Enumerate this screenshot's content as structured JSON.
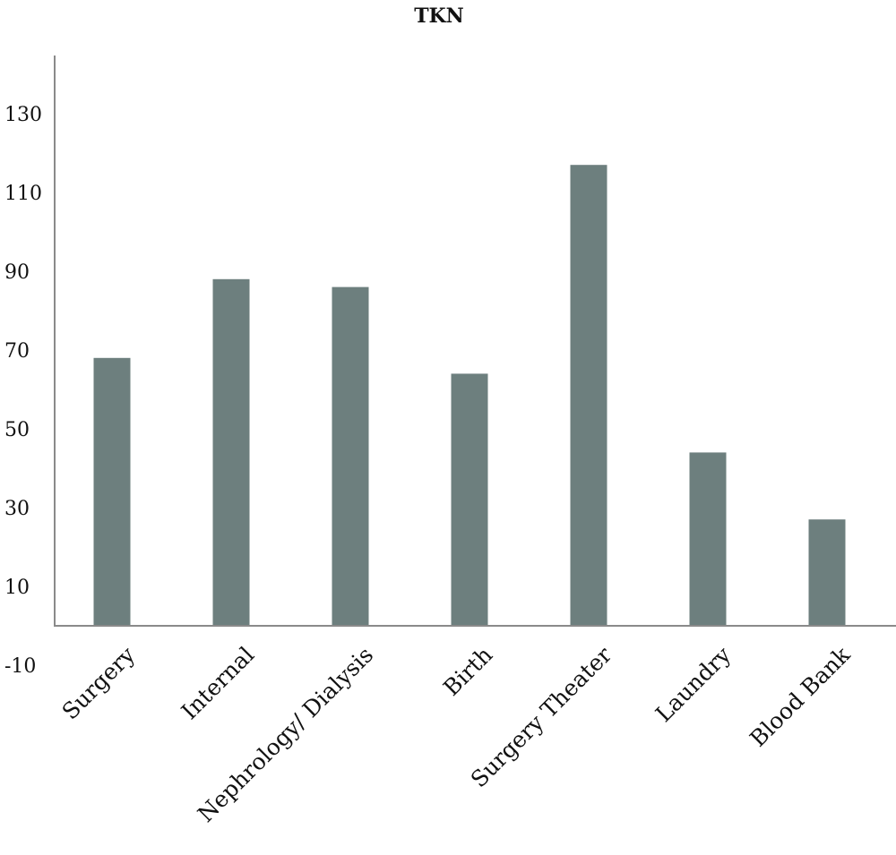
{
  "chart_data": {
    "type": "bar",
    "title": "TKN",
    "xlabel": "",
    "ylabel": "",
    "categories": [
      "Surgery",
      "Internal",
      "Nephrology/ Dialysis",
      "Birth",
      "Surgery Theater",
      "Laundry",
      "Blood Bank"
    ],
    "values": [
      68,
      88,
      86,
      64,
      117,
      44,
      27
    ],
    "ylim": [
      -10,
      140
    ],
    "yticks": [
      -10,
      10,
      30,
      50,
      70,
      90,
      110,
      130
    ],
    "ytick_labels": [
      "-10",
      "10",
      "30",
      "50",
      "70",
      "90",
      "110",
      "130"
    ],
    "bar_color": "#6d7f7e",
    "grid": false,
    "legend": "none"
  }
}
